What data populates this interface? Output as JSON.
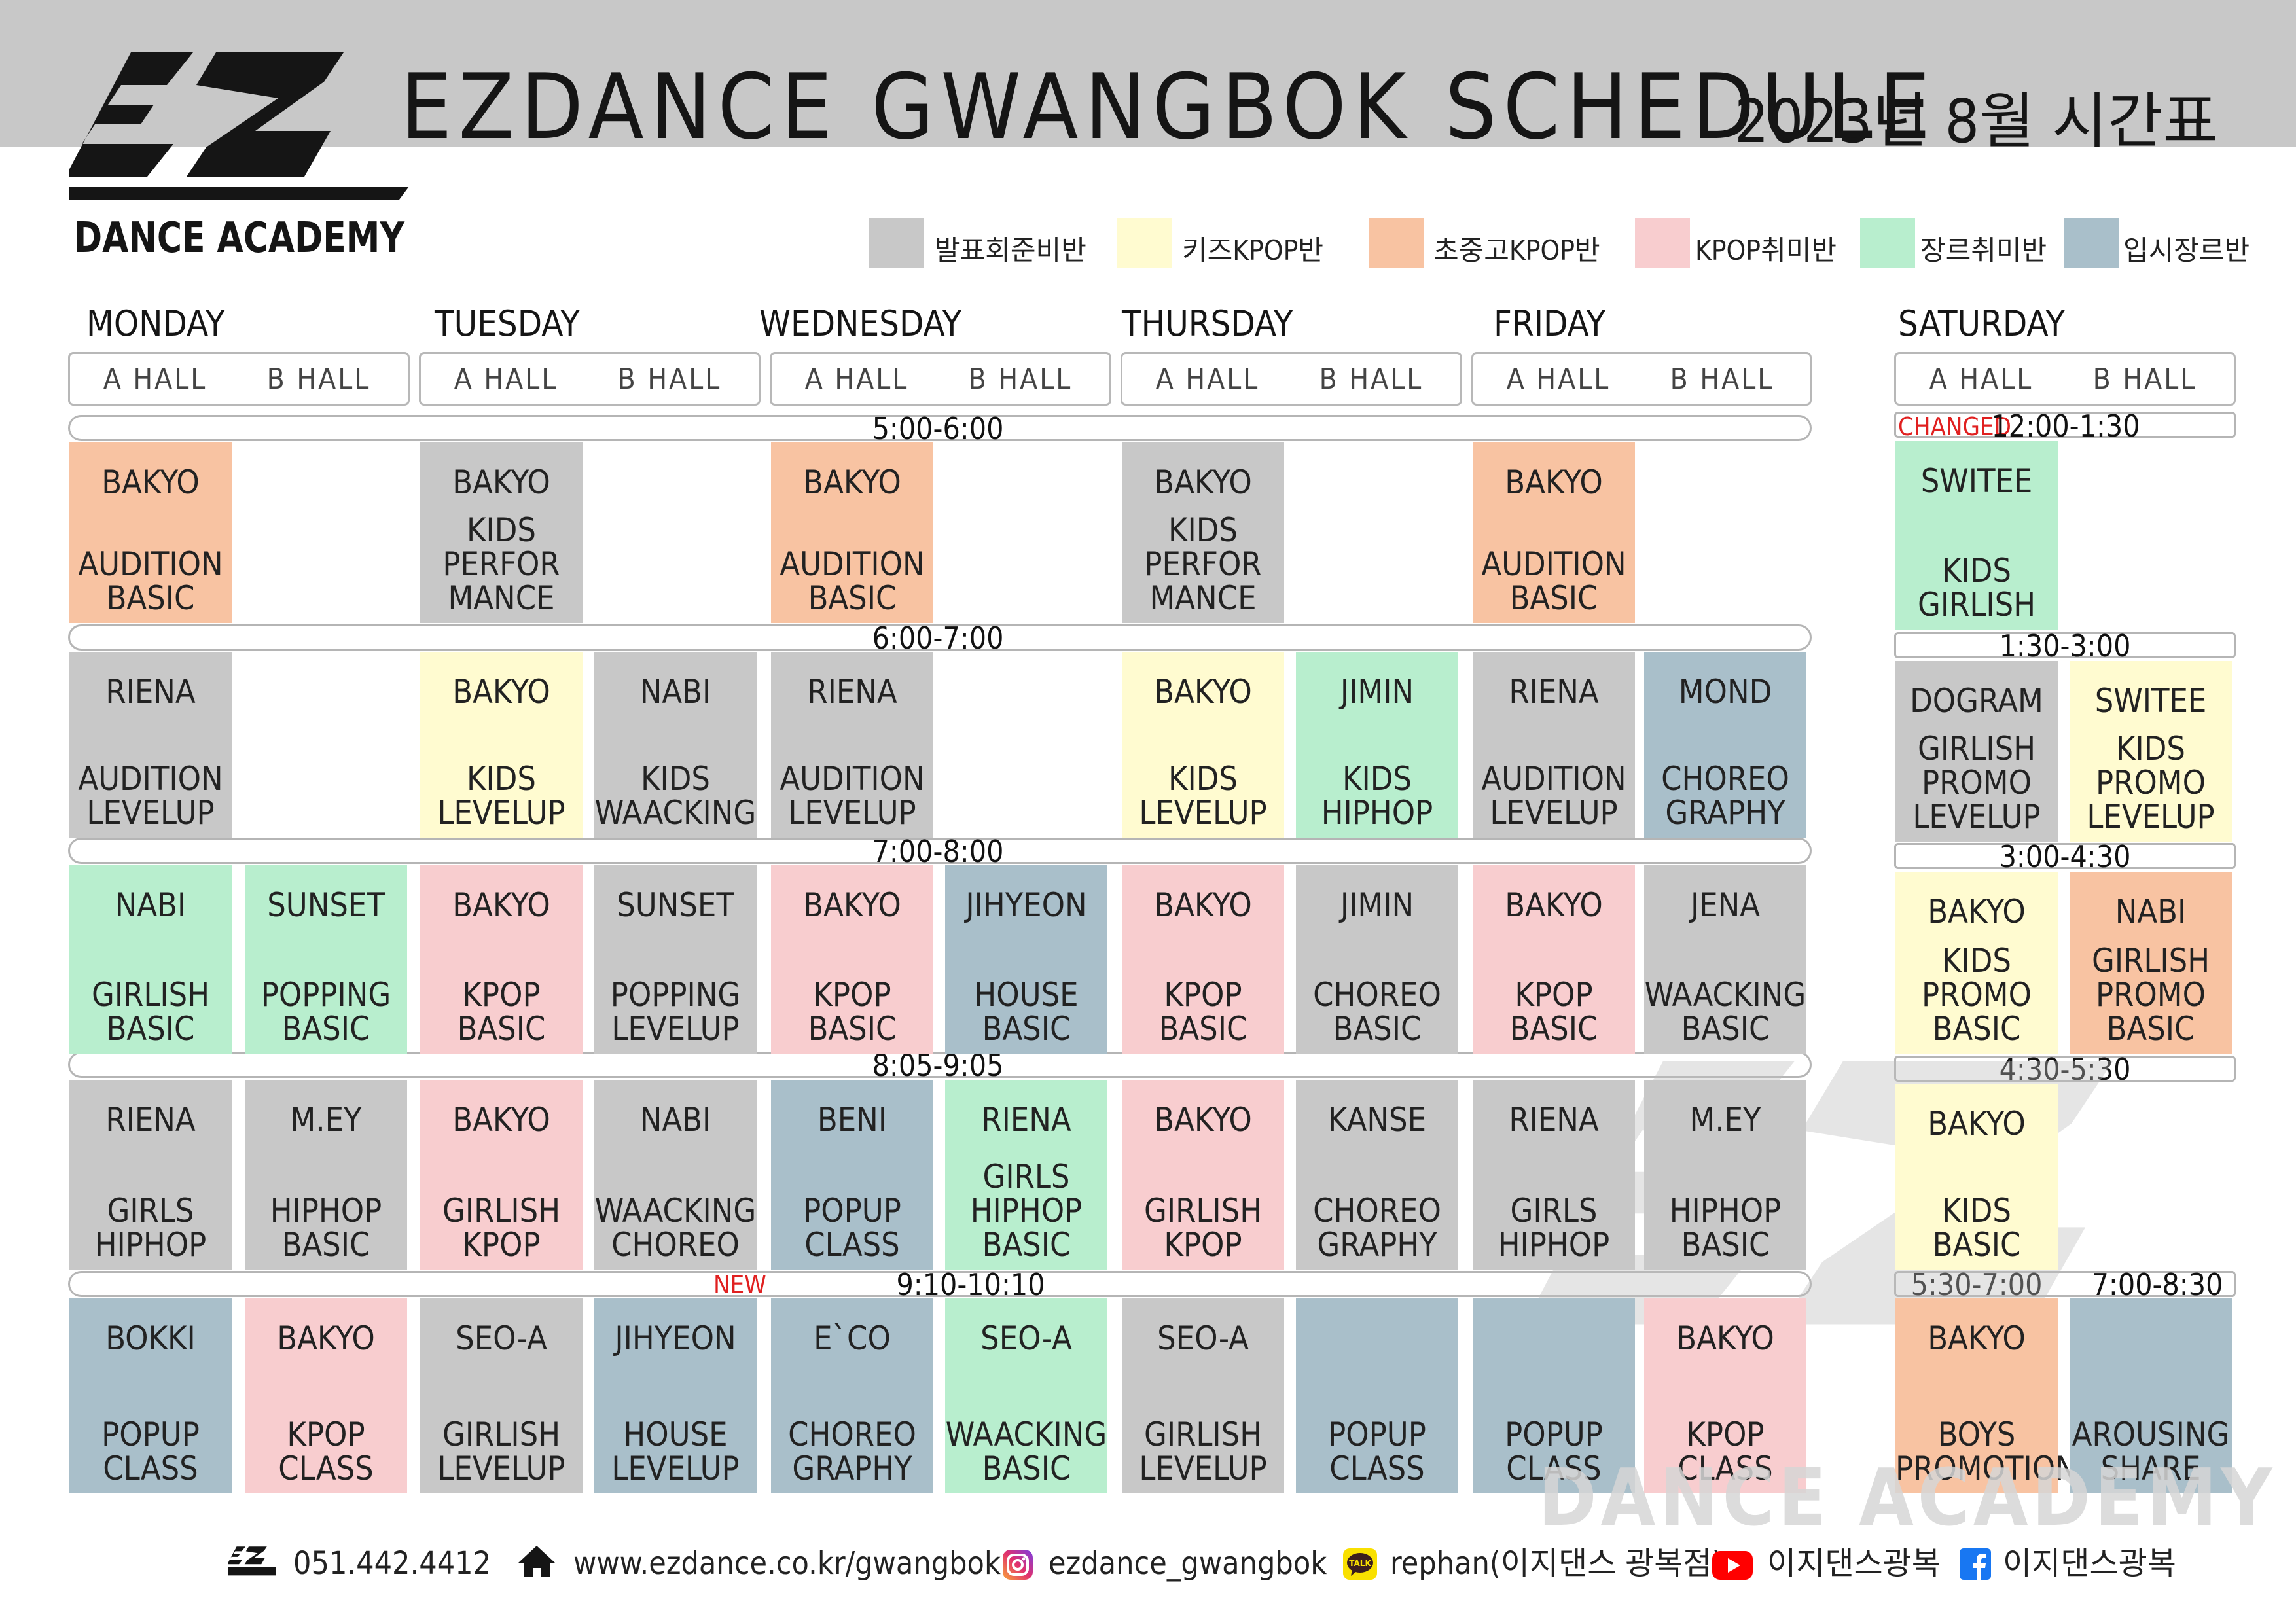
{
  "header": {
    "title": "EZDANCE  GWANGBOK  SCHEDULE",
    "date": "2023년  8월  시간표",
    "logo_text": "DANCE ACADEMY"
  },
  "legend": [
    {
      "label": "발표회준비반",
      "color": "#c8c8c8"
    },
    {
      "label": "키즈KPOP반",
      "color": "#fffbd0"
    },
    {
      "label": "초중고KPOP반",
      "color": "#f8c3a2"
    },
    {
      "label": "KPOP취미반",
      "color": "#f8cdcf"
    },
    {
      "label": "장르취미반",
      "color": "#b8eece"
    },
    {
      "label": "입시장르반",
      "color": "#a9bfca"
    }
  ],
  "days": [
    "MONDAY",
    "TUESDAY",
    "WEDNESDAY",
    "THURSDAY",
    "FRIDAY",
    "SATURDAY"
  ],
  "halls": {
    "a": "A  HALL",
    "b": "B  HALL"
  },
  "weekday_times": [
    "5:00-6:00",
    "6:00-7:00",
    "7:00-8:00",
    "8:05-9:05",
    "9:10-10:10"
  ],
  "saturday_times": {
    "t1": "12:00-1:30",
    "t2": "1:30-3:00",
    "t3": "3:00-4:30",
    "t4": "4:30-5:30",
    "t5a": "5:30-7:00",
    "t5b": "7:00-8:30"
  },
  "tags": {
    "changed": "CHANGED",
    "new": "NEW"
  },
  "weekday_rows": [
    [
      {
        "teacher": "BAKYO",
        "class": "AUDITION\nBASIC",
        "color": "orange"
      },
      null,
      {
        "teacher": "BAKYO",
        "class": "KIDS\nPERFOR\nMANCE",
        "color": "gray"
      },
      null,
      {
        "teacher": "BAKYO",
        "class": "AUDITION\nBASIC",
        "color": "orange"
      },
      null,
      {
        "teacher": "BAKYO",
        "class": "KIDS\nPERFOR\nMANCE",
        "color": "gray"
      },
      null,
      {
        "teacher": "BAKYO",
        "class": "AUDITION\nBASIC",
        "color": "orange"
      },
      null
    ],
    [
      {
        "teacher": "RIENA",
        "class": "AUDITION\nLEVELUP",
        "color": "gray"
      },
      null,
      {
        "teacher": "BAKYO",
        "class": "KIDS\nLEVELUP",
        "color": "yellow"
      },
      {
        "teacher": "NABI",
        "class": "KIDS\nWAACKING",
        "color": "gray"
      },
      {
        "teacher": "RIENA",
        "class": "AUDITION\nLEVELUP",
        "color": "gray"
      },
      null,
      {
        "teacher": "BAKYO",
        "class": "KIDS\nLEVELUP",
        "color": "yellow"
      },
      {
        "teacher": "JIMIN",
        "class": "KIDS\nHIPHOP",
        "color": "green"
      },
      {
        "teacher": "RIENA",
        "class": "AUDITION\nLEVELUP",
        "color": "gray"
      },
      {
        "teacher": "MOND",
        "class": "CHOREO\nGRAPHY",
        "color": "blue"
      }
    ],
    [
      {
        "teacher": "NABI",
        "class": "GIRLISH\nBASIC",
        "color": "green"
      },
      {
        "teacher": "SUNSET",
        "class": "POPPING\nBASIC",
        "color": "green"
      },
      {
        "teacher": "BAKYO",
        "class": "KPOP\nBASIC",
        "color": "pink"
      },
      {
        "teacher": "SUNSET",
        "class": "POPPING\nLEVELUP",
        "color": "gray"
      },
      {
        "teacher": "BAKYO",
        "class": "KPOP\nBASIC",
        "color": "pink"
      },
      {
        "teacher": "JIHYEON",
        "class": "HOUSE\nBASIC",
        "color": "blue"
      },
      {
        "teacher": "BAKYO",
        "class": "KPOP\nBASIC",
        "color": "pink"
      },
      {
        "teacher": "JIMIN",
        "class": "CHOREO\nBASIC",
        "color": "gray"
      },
      {
        "teacher": "BAKYO",
        "class": "KPOP\nBASIC",
        "color": "pink"
      },
      {
        "teacher": "JENA",
        "class": "WAACKING\nBASIC",
        "color": "gray"
      }
    ],
    [
      {
        "teacher": "RIENA",
        "class": "GIRLS\nHIPHOP",
        "color": "gray"
      },
      {
        "teacher": "M.EY",
        "class": "HIPHOP\nBASIC",
        "color": "gray"
      },
      {
        "teacher": "BAKYO",
        "class": "GIRLISH\nKPOP",
        "color": "pink"
      },
      {
        "teacher": "NABI",
        "class": "WAACKING\nCHOREO",
        "color": "gray"
      },
      {
        "teacher": "BENI",
        "class": "POPUP\nCLASS",
        "color": "blue"
      },
      {
        "teacher": "RIENA",
        "class": "GIRLS\nHIPHOP\nBASIC",
        "color": "green"
      },
      {
        "teacher": "BAKYO",
        "class": "GIRLISH\nKPOP",
        "color": "pink"
      },
      {
        "teacher": "KANSE",
        "class": "CHOREO\nGRAPHY",
        "color": "gray"
      },
      {
        "teacher": "RIENA",
        "class": "GIRLS\nHIPHOP",
        "color": "gray"
      },
      {
        "teacher": "M.EY",
        "class": "HIPHOP\nBASIC",
        "color": "gray"
      }
    ],
    [
      {
        "teacher": "BOKKI",
        "class": "POPUP\nCLASS",
        "color": "blue"
      },
      {
        "teacher": "BAKYO",
        "class": "KPOP\nCLASS",
        "color": "pink"
      },
      {
        "teacher": "SEO-A",
        "class": "GIRLISH\nLEVELUP",
        "color": "gray"
      },
      {
        "teacher": "JIHYEON",
        "class": "HOUSE\nLEVELUP",
        "color": "blue"
      },
      {
        "teacher": "E`CO",
        "class": "CHOREO\nGRAPHY",
        "color": "blue"
      },
      {
        "teacher": "SEO-A",
        "class": "WAACKING\nBASIC",
        "color": "green"
      },
      {
        "teacher": "SEO-A",
        "class": "GIRLISH\nLEVELUP",
        "color": "gray"
      },
      {
        "teacher": "",
        "class": "POPUP\nCLASS",
        "color": "blue"
      },
      {
        "teacher": "",
        "class": "POPUP\nCLASS",
        "color": "blue"
      },
      {
        "teacher": "BAKYO",
        "class": "KPOP\nCLASS",
        "color": "pink"
      }
    ]
  ],
  "saturday_cells": [
    {
      "teacher": "SWITEE",
      "class": "KIDS\nGIRLISH",
      "color": "green"
    },
    {
      "teacher": "DOGRAM",
      "class": "GIRLISH\nPROMO\nLEVELUP",
      "color": "gray"
    },
    {
      "teacher": "SWITEE",
      "class": "KIDS\nPROMO\nLEVELUP",
      "color": "yellow"
    },
    {
      "teacher": "BAKYO",
      "class": "KIDS\nPROMO\nBASIC",
      "color": "yellow"
    },
    {
      "teacher": "NABI",
      "class": "GIRLISH\nPROMO\nBASIC",
      "color": "orange"
    },
    {
      "teacher": "BAKYO",
      "class": "KIDS\nBASIC",
      "color": "yellow"
    },
    {
      "teacher": "BAKYO",
      "class": "BOYS\nPROMOTION",
      "color": "orange"
    },
    {
      "teacher": "",
      "class": "AROUSING\nSHARE",
      "color": "blue"
    }
  ],
  "watermark_text": "DANCE ACADEMY",
  "footer": {
    "phone": "051.442.4412",
    "website": "www.ezdance.co.kr/gwangbok",
    "instagram": "ezdance_gwangbok",
    "kakao": "rephan(이지댄스 광복점)",
    "youtube": "이지댄스광복",
    "facebook": "이지댄스광복",
    "kakao_badge": "TALK"
  }
}
